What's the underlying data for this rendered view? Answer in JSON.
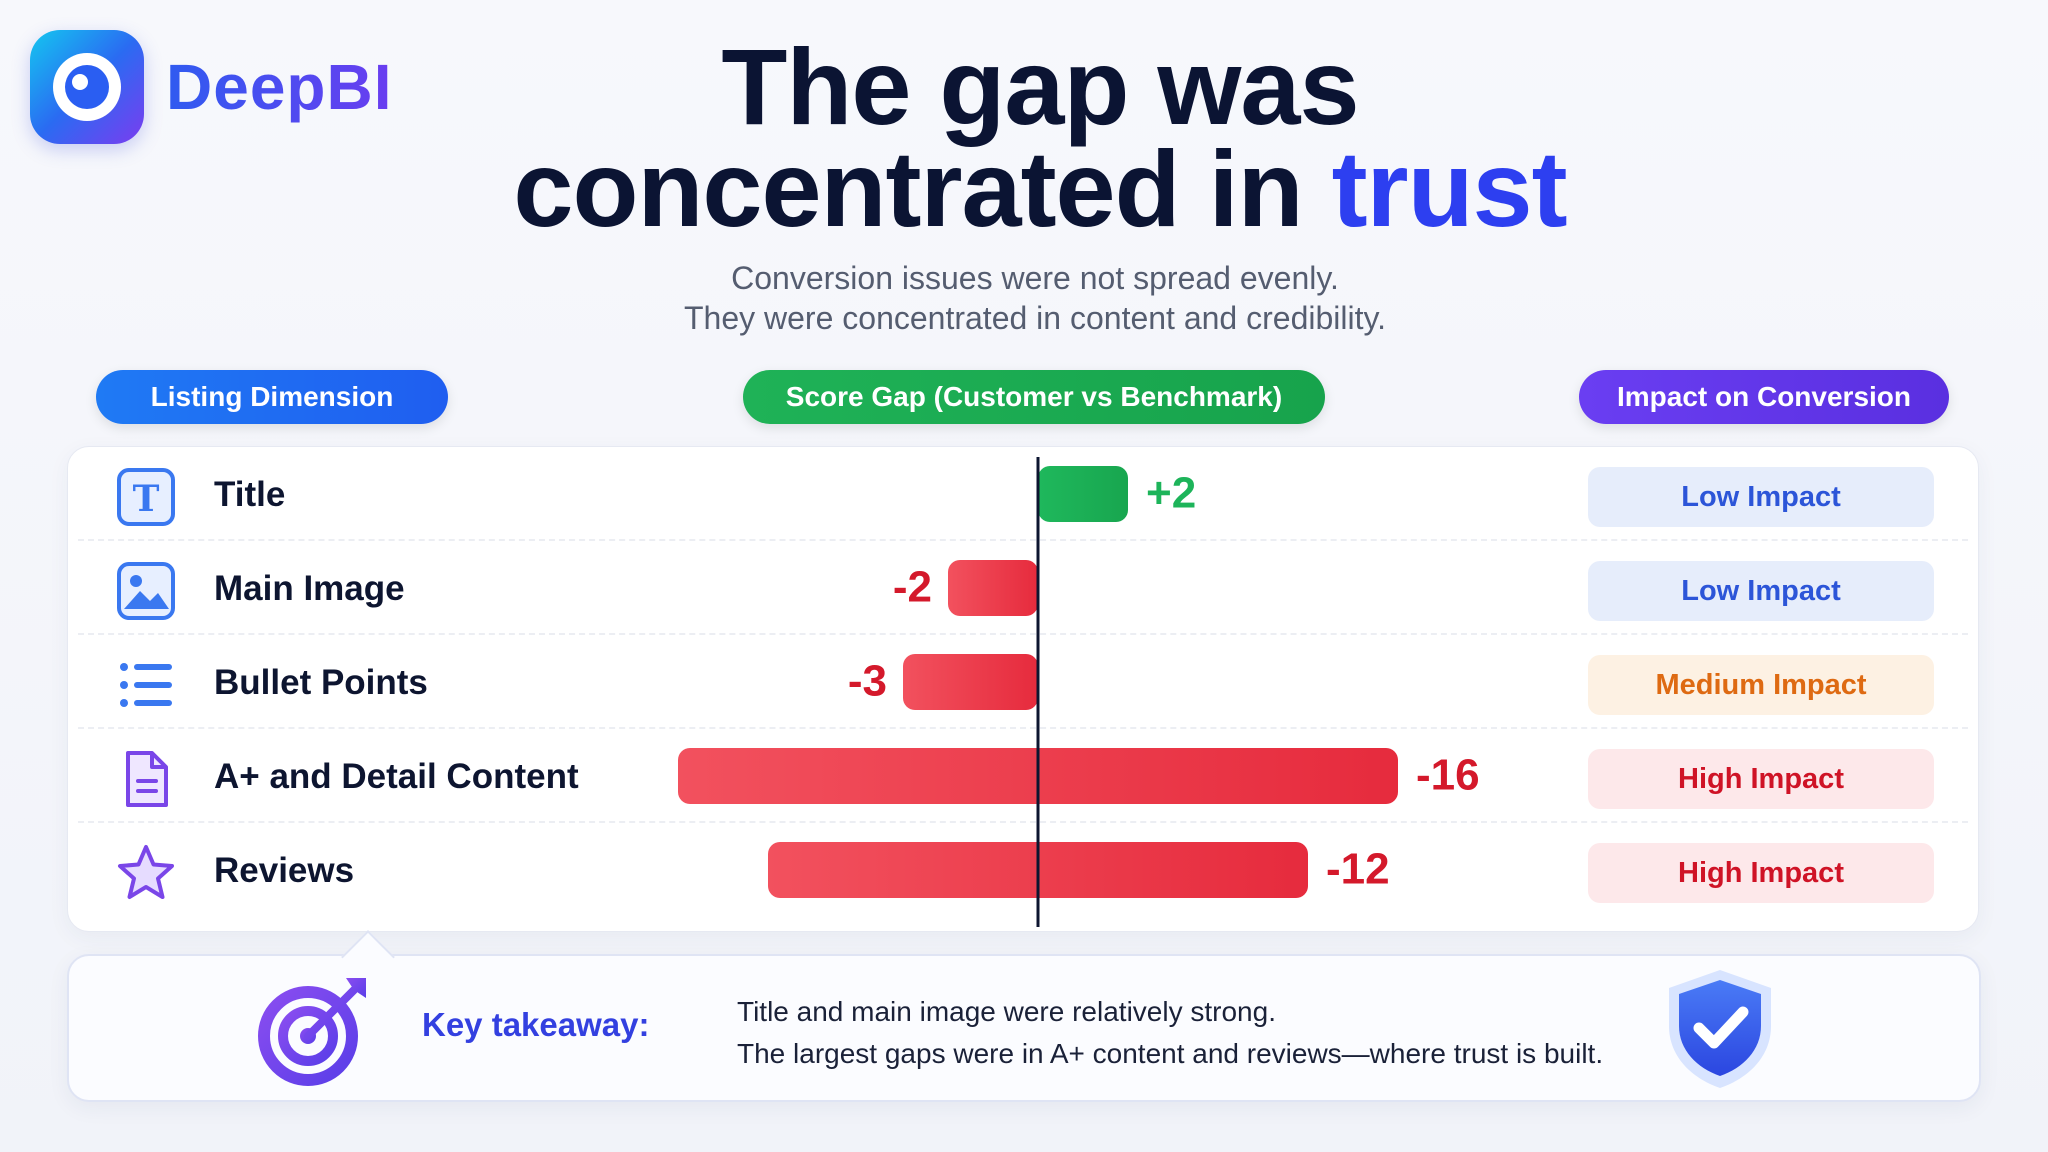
{
  "brand": {
    "name": "DeepBI"
  },
  "header": {
    "title_line1": "The gap was",
    "title_line2_main": "concentrated in",
    "title_line2_accent": "trust",
    "subtitle_line1": "Conversion issues were not spread evenly.",
    "subtitle_line2": "They were concentrated in content and credibility."
  },
  "columns": {
    "dimension": "Listing Dimension",
    "gap": "Score Gap (Customer vs Benchmark)",
    "impact": "Impact on Conversion"
  },
  "rows": [
    {
      "label": "Title",
      "icon": "title-t-icon",
      "gap": 2,
      "gap_label": "+2",
      "impact": "Low Impact",
      "impact_level": "low"
    },
    {
      "label": "Main Image",
      "icon": "image-icon",
      "gap": -2,
      "gap_label": "-2",
      "impact": "Low Impact",
      "impact_level": "low"
    },
    {
      "label": "Bullet Points",
      "icon": "list-icon",
      "gap": -3,
      "gap_label": "-3",
      "impact": "Medium Impact",
      "impact_level": "medium"
    },
    {
      "label": "A+ and Detail Content",
      "icon": "document-icon",
      "gap": -16,
      "gap_label": "-16",
      "impact": "High Impact",
      "impact_level": "high"
    },
    {
      "label": "Reviews",
      "icon": "star-icon",
      "gap": -12,
      "gap_label": "-12",
      "impact": "High Impact",
      "impact_level": "high"
    }
  ],
  "chart_data": {
    "type": "bar",
    "orientation": "horizontal",
    "categories": [
      "Title",
      "Main Image",
      "Bullet Points",
      "A+ and Detail Content",
      "Reviews"
    ],
    "values": [
      2,
      -2,
      -3,
      -16,
      -12
    ],
    "title": "",
    "xlabel": "Score Gap (Customer vs Benchmark)",
    "ylabel": "Listing Dimension",
    "colors": {
      "positive": "#1db45a",
      "negative": "#ef3b4d"
    }
  },
  "takeaway": {
    "label": "Key takeaway:",
    "line1": "Title and main image were relatively strong.",
    "line2": "The largest gaps were in A+ content and reviews—where trust is built."
  },
  "colors": {
    "accent": "#2d3ff0",
    "impact_low": {
      "bg": "#e6edfb",
      "text": "#2c55d8"
    },
    "impact_medium": {
      "bg": "#fdf1e3",
      "text": "#de6a12"
    },
    "impact_high": {
      "bg": "#fde8ea",
      "text": "#cf1326"
    }
  }
}
